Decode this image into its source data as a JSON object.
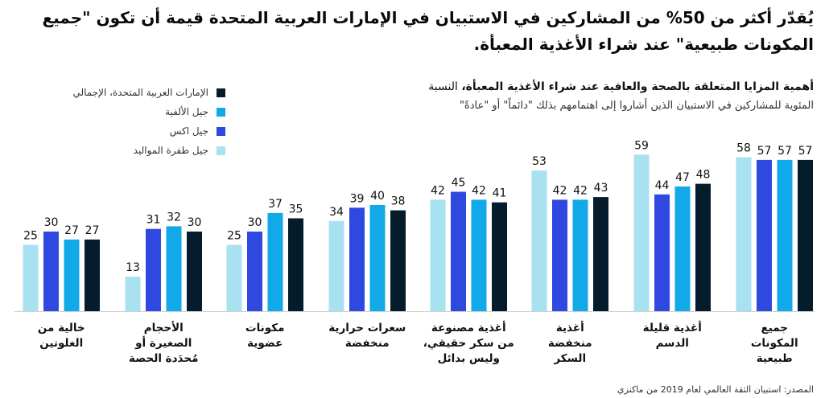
{
  "headline": "يُقدّر أكثر من 50% من المشاركين في الاستبيان في الإمارات العربية المتحدة قيمة أن تكون \"جميع المكونات طبيعية\" عند شراء الأغذية المعبأة.",
  "chart_data": {
    "type": "bar",
    "title": "أهمية المزايا المتعلقة بالصحة والعافية عند شراء الأغذية المعبأة،",
    "title_suffix": " النسبة",
    "subtitle": "المئوية للمشاركين في الاستبيان الذين أشاروا إلى اهتمامهم بذلك \"دائماً\" أو \"عادةً\"",
    "categories": [
      [
        "جميع",
        "المكونات",
        "طبيعية"
      ],
      [
        "أغذية قليلة",
        "الدسم"
      ],
      [
        "أغذية",
        "منخفضة",
        "السكر"
      ],
      [
        "أغذية مصنوعة",
        "من سكر حقيقي،",
        "وليس بدائل"
      ],
      [
        "سعرات حرارية",
        "منخفضة"
      ],
      [
        "مكونات",
        "عضوية"
      ],
      [
        "الأحجام",
        "الصغيرة أو",
        "مُحدَدة الحصة"
      ],
      [
        "خالية من",
        "الغلوتين"
      ]
    ],
    "series": [
      {
        "name": "جيل طفرة المواليد",
        "color": "#a8e2f1",
        "values": [
          58,
          59,
          53,
          42,
          34,
          25,
          13,
          25
        ]
      },
      {
        "name": "جيل اكس",
        "color": "#2e48e0",
        "values": [
          57,
          44,
          42,
          45,
          39,
          30,
          31,
          30
        ]
      },
      {
        "name": "جيل الألفية",
        "color": "#12a9e8",
        "values": [
          57,
          47,
          42,
          42,
          40,
          37,
          32,
          27
        ]
      },
      {
        "name": "الإمارات العربية المتحدة، الإجمالي",
        "color": "#051c2c",
        "values": [
          57,
          48,
          43,
          41,
          38,
          35,
          30,
          27
        ]
      }
    ],
    "ylim": [
      0,
      60
    ],
    "xlabel": "",
    "ylabel": ""
  },
  "legend_order": [
    3,
    2,
    1,
    0
  ],
  "source": "المصدر: استبيان الثقة العالمي لعام 2019 من ماكنزي"
}
